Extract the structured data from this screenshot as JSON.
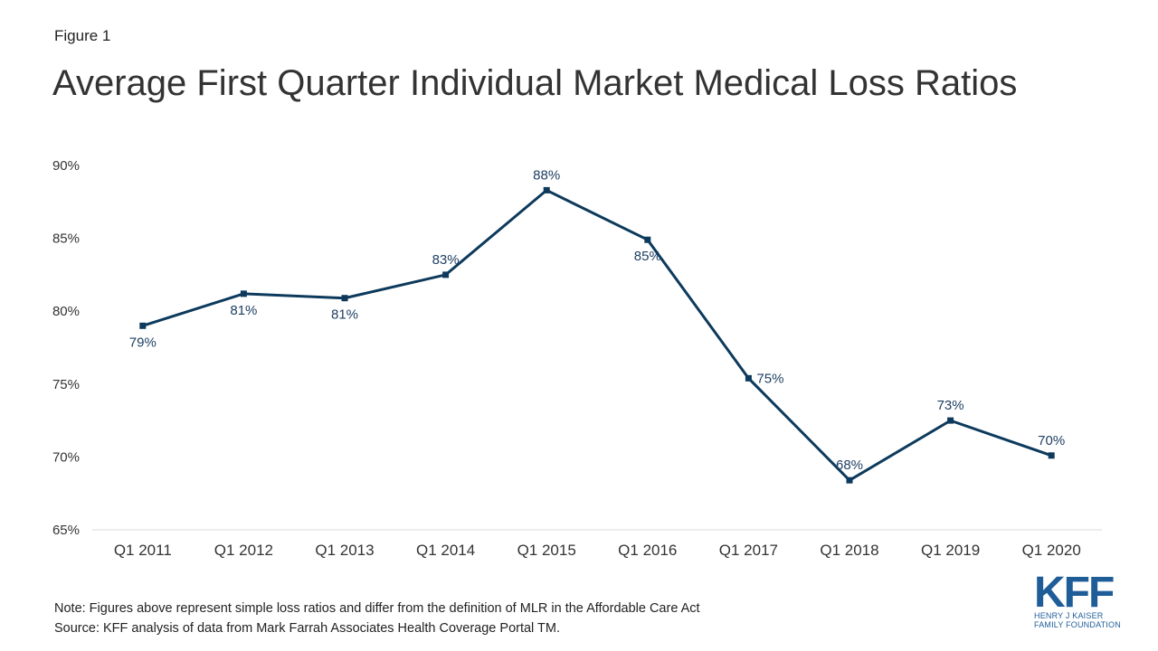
{
  "figure_label": "Figure 1",
  "title": "Average First Quarter Individual Market Medical Loss Ratios",
  "note": "Note: Figures above represent simple loss ratios and differ from the definition of MLR in the Affordable Care Act",
  "source": "Source: KFF analysis of data from Mark Farrah Associates Health Coverage Portal TM.",
  "logo": {
    "mark": "KFF",
    "line1": "HENRY J KAISER",
    "line2": "FAMILY FOUNDATION"
  },
  "colors": {
    "line": "#0d3a5c",
    "label": "#1f3f63",
    "axis": "#d9d9d9"
  },
  "chart_data": {
    "type": "line",
    "categories": [
      "Q1 2011",
      "Q1 2012",
      "Q1 2013",
      "Q1 2014",
      "Q1 2015",
      "Q1 2016",
      "Q1 2017",
      "Q1 2018",
      "Q1 2019",
      "Q1 2020"
    ],
    "values": [
      79.0,
      81.2,
      80.9,
      82.5,
      88.3,
      84.9,
      75.4,
      68.4,
      72.5,
      70.1
    ],
    "data_labels": [
      "79%",
      "81%",
      "81%",
      "83%",
      "88%",
      "85%",
      "75%",
      "68%",
      "73%",
      "70%"
    ],
    "label_position": [
      "below",
      "below",
      "below",
      "above",
      "above",
      "below",
      "right",
      "above",
      "above",
      "above"
    ],
    "yticks": [
      65,
      70,
      75,
      80,
      85,
      90
    ],
    "ytick_labels": [
      "65%",
      "70%",
      "75%",
      "80%",
      "85%",
      "90%"
    ],
    "ylim": [
      65,
      90
    ],
    "grid": false
  }
}
